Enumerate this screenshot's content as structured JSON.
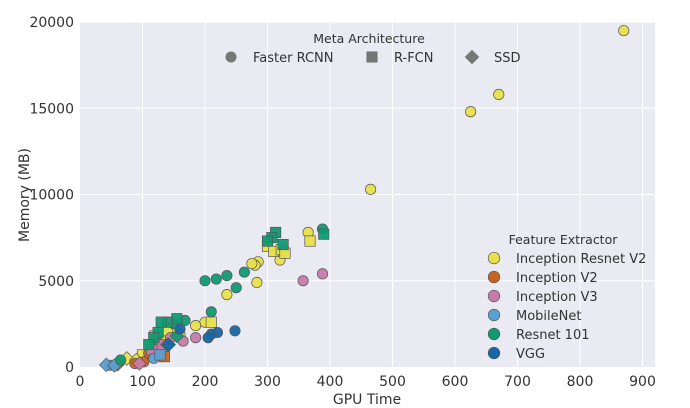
{
  "chart_data": {
    "type": "scatter",
    "xlabel": "GPU Time",
    "ylabel": "Memory (MB)",
    "xlim": [
      0,
      920
    ],
    "ylim": [
      0,
      20000
    ],
    "x_ticks": [
      0,
      100,
      200,
      300,
      400,
      500,
      600,
      700,
      800,
      900
    ],
    "y_ticks": [
      0,
      5000,
      10000,
      15000,
      20000
    ],
    "grid": true,
    "background": "#eaeaf2",
    "shape_legend": {
      "title": "Meta Architecture",
      "placement": "top-center",
      "entries": [
        {
          "label": "Faster RCNN",
          "marker": "circle"
        },
        {
          "label": "R-FCN",
          "marker": "square"
        },
        {
          "label": "SSD",
          "marker": "diamond"
        }
      ]
    },
    "color_legend": {
      "title": "Feature Extractor",
      "placement": "bottom-right"
    },
    "series": [
      {
        "name": "Inception Resnet V2",
        "color": "#e8e04a",
        "points": [
          {
            "x": 870,
            "y": 19500,
            "m": "circle"
          },
          {
            "x": 670,
            "y": 15800,
            "m": "circle"
          },
          {
            "x": 625,
            "y": 14800,
            "m": "circle"
          },
          {
            "x": 465,
            "y": 10300,
            "m": "circle"
          },
          {
            "x": 365,
            "y": 7800,
            "m": "circle"
          },
          {
            "x": 285,
            "y": 6100,
            "m": "circle"
          },
          {
            "x": 280,
            "y": 5900,
            "m": "circle"
          },
          {
            "x": 275,
            "y": 6000,
            "m": "circle"
          },
          {
            "x": 320,
            "y": 6200,
            "m": "circle"
          },
          {
            "x": 283,
            "y": 4900,
            "m": "circle"
          },
          {
            "x": 235,
            "y": 4200,
            "m": "circle"
          },
          {
            "x": 200,
            "y": 2600,
            "m": "circle"
          },
          {
            "x": 185,
            "y": 2400,
            "m": "circle"
          },
          {
            "x": 160,
            "y": 1900,
            "m": "circle"
          },
          {
            "x": 300,
            "y": 7000,
            "m": "square"
          },
          {
            "x": 310,
            "y": 6700,
            "m": "square"
          },
          {
            "x": 322,
            "y": 6800,
            "m": "square"
          },
          {
            "x": 328,
            "y": 6600,
            "m": "square"
          },
          {
            "x": 368,
            "y": 7300,
            "m": "square"
          },
          {
            "x": 210,
            "y": 2600,
            "m": "square"
          },
          {
            "x": 150,
            "y": 2300,
            "m": "square"
          },
          {
            "x": 140,
            "y": 2100,
            "m": "square"
          },
          {
            "x": 120,
            "y": 1800,
            "m": "square"
          },
          {
            "x": 130,
            "y": 1500,
            "m": "square"
          },
          {
            "x": 100,
            "y": 700,
            "m": "square"
          },
          {
            "x": 75,
            "y": 500,
            "m": "diamond"
          },
          {
            "x": 90,
            "y": 400,
            "m": "diamond"
          }
        ]
      },
      {
        "name": "Inception V2",
        "color": "#c8641e",
        "points": [
          {
            "x": 125,
            "y": 1400,
            "m": "circle"
          },
          {
            "x": 110,
            "y": 800,
            "m": "circle"
          },
          {
            "x": 88,
            "y": 200,
            "m": "circle"
          },
          {
            "x": 102,
            "y": 300,
            "m": "circle"
          },
          {
            "x": 135,
            "y": 600,
            "m": "square"
          },
          {
            "x": 60,
            "y": 150,
            "m": "diamond"
          }
        ]
      },
      {
        "name": "Inception V3",
        "color": "#c77bab",
        "points": [
          {
            "x": 388,
            "y": 5400,
            "m": "circle"
          },
          {
            "x": 357,
            "y": 5000,
            "m": "circle"
          },
          {
            "x": 185,
            "y": 1700,
            "m": "circle"
          },
          {
            "x": 165,
            "y": 1500,
            "m": "circle"
          },
          {
            "x": 145,
            "y": 1700,
            "m": "circle"
          },
          {
            "x": 130,
            "y": 1300,
            "m": "square"
          },
          {
            "x": 115,
            "y": 1000,
            "m": "square"
          },
          {
            "x": 95,
            "y": 200,
            "m": "diamond"
          }
        ]
      },
      {
        "name": "MobileNet",
        "color": "#5aa0d2",
        "points": [
          {
            "x": 48,
            "y": 100,
            "m": "circle"
          },
          {
            "x": 118,
            "y": 500,
            "m": "circle"
          },
          {
            "x": 128,
            "y": 700,
            "m": "square"
          },
          {
            "x": 42,
            "y": 120,
            "m": "diamond"
          },
          {
            "x": 55,
            "y": 90,
            "m": "diamond"
          }
        ]
      },
      {
        "name": "Resnet 101",
        "color": "#109a72",
        "points": [
          {
            "x": 388,
            "y": 8000,
            "m": "circle"
          },
          {
            "x": 263,
            "y": 5500,
            "m": "circle"
          },
          {
            "x": 250,
            "y": 4600,
            "m": "circle"
          },
          {
            "x": 235,
            "y": 5300,
            "m": "circle"
          },
          {
            "x": 218,
            "y": 5100,
            "m": "circle"
          },
          {
            "x": 200,
            "y": 5000,
            "m": "circle"
          },
          {
            "x": 210,
            "y": 3200,
            "m": "circle"
          },
          {
            "x": 168,
            "y": 2700,
            "m": "circle"
          },
          {
            "x": 150,
            "y": 2500,
            "m": "circle"
          },
          {
            "x": 65,
            "y": 400,
            "m": "circle"
          },
          {
            "x": 313,
            "y": 7800,
            "m": "square"
          },
          {
            "x": 307,
            "y": 7500,
            "m": "square"
          },
          {
            "x": 300,
            "y": 7300,
            "m": "square"
          },
          {
            "x": 325,
            "y": 7100,
            "m": "square"
          },
          {
            "x": 390,
            "y": 7700,
            "m": "square"
          },
          {
            "x": 155,
            "y": 2800,
            "m": "square"
          },
          {
            "x": 140,
            "y": 2600,
            "m": "square"
          },
          {
            "x": 130,
            "y": 2600,
            "m": "square"
          },
          {
            "x": 125,
            "y": 2000,
            "m": "square"
          },
          {
            "x": 118,
            "y": 1700,
            "m": "square"
          },
          {
            "x": 110,
            "y": 1300,
            "m": "square"
          },
          {
            "x": 155,
            "y": 1800,
            "m": "diamond"
          },
          {
            "x": 140,
            "y": 1300,
            "m": "diamond"
          }
        ]
      },
      {
        "name": "VGG",
        "color": "#1767a8",
        "points": [
          {
            "x": 248,
            "y": 2100,
            "m": "circle"
          },
          {
            "x": 220,
            "y": 2000,
            "m": "circle"
          },
          {
            "x": 210,
            "y": 1900,
            "m": "circle"
          },
          {
            "x": 205,
            "y": 1700,
            "m": "circle"
          },
          {
            "x": 160,
            "y": 2200,
            "m": "circle"
          },
          {
            "x": 142,
            "y": 1300,
            "m": "diamond"
          }
        ]
      }
    ]
  }
}
